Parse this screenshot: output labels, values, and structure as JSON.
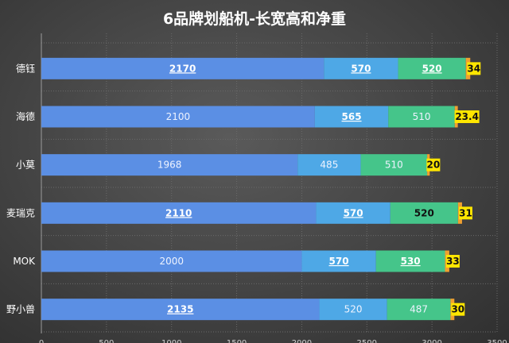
{
  "chart_data": {
    "type": "bar",
    "orientation": "horizontal",
    "stacked": true,
    "title": "6品牌划船机-长宽高和净重",
    "xlabel": "",
    "ylabel": "",
    "categories": [
      "德钰",
      "海德",
      "小莫",
      "麦瑞克",
      "MOK",
      "野小兽"
    ],
    "series": [
      {
        "values": [
          2170,
          2100,
          1968,
          2110,
          2000,
          2135
        ],
        "color": "#5b8fe4"
      },
      {
        "values": [
          570,
          565,
          485,
          570,
          570,
          520
        ],
        "color": "#4ea8e6"
      },
      {
        "values": [
          520,
          510,
          510,
          520,
          530,
          487
        ],
        "color": "#45c58a"
      },
      {
        "values": [
          34,
          23.4,
          20,
          31,
          33,
          30
        ],
        "color": "#f0a030"
      }
    ],
    "data_label_styles": [
      [
        "underline",
        "plain",
        "plain",
        "underline",
        "plain",
        "underline"
      ],
      [
        "underline",
        "underline",
        "plain",
        "underline",
        "underline",
        "plain"
      ],
      [
        "underline",
        "plain",
        "plain",
        "bold-dark",
        "underline",
        "plain"
      ],
      [
        "highlight",
        "highlight",
        "highlight",
        "highlight",
        "highlight",
        "highlight"
      ]
    ],
    "xlim": [
      0,
      3500
    ],
    "x_ticks": [
      0,
      500,
      1000,
      1500,
      2000,
      2500,
      3000,
      3500
    ],
    "grid": true,
    "legend": "none"
  }
}
